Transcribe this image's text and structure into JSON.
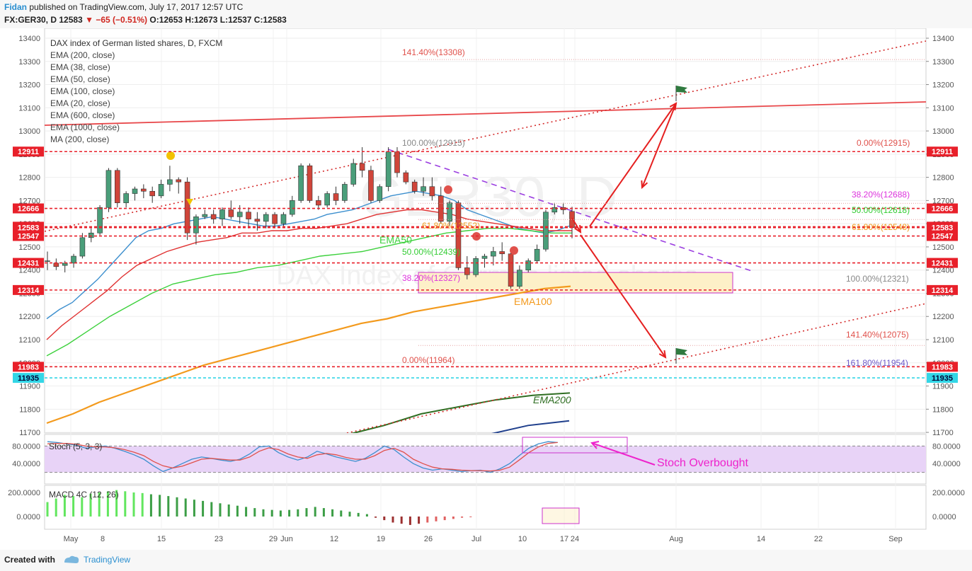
{
  "header": {
    "author": "Fidan",
    "published": "published on TradingView.com, July 17, 2017 12:57 UTC",
    "symbol": "FX:GER30, D",
    "last": "12583",
    "change": "−65 (−0.51%)",
    "ohlc": "O:12653 H:12673 L:12537 C:12583"
  },
  "legend": {
    "title": "DAX index of German listed shares, D, FXCM",
    "indicators": [
      "EMA (200, close)",
      "EMA (38, close)",
      "EMA (50, close)",
      "EMA (100, close)",
      "EMA (20, close)",
      "EMA (600, close)",
      "EMA (1000, close)",
      "MA (200, close)"
    ]
  },
  "watermark": {
    "symbol": "GER30, D",
    "name": "DAX Index of German listed shares"
  },
  "footer": {
    "created": "Created with",
    "brand": "TradingView"
  },
  "colors": {
    "up": "#4a9e7a",
    "down": "#d0453a",
    "ema20": "#3c8fce",
    "ema38": "#e03232",
    "ema50": "#3dd13d",
    "ema100": "#f39a1d",
    "ema200": "#2f6e22",
    "ema600": "#1f3f8c",
    "resistance": "#e8474a",
    "fib_violet": "#cc33cc"
  },
  "chart_data": [
    {
      "type": "candlestick",
      "title": "DAX index of German listed shares, D, FXCM",
      "ylim": [
        11650,
        13450
      ],
      "yticks": [
        13400,
        13300,
        13200,
        13100,
        13000,
        12900,
        12800,
        12700,
        12600,
        12500,
        12400,
        12300,
        12200,
        12100,
        12000,
        11900,
        11800,
        11700
      ],
      "xticks": [
        "May",
        "8",
        "15",
        "23",
        "29",
        "Jun",
        "12",
        "19",
        "26",
        "Jul",
        "10",
        "17",
        "24",
        "Aug",
        "14",
        "22",
        "Sep"
      ],
      "price_labels": [
        {
          "value": 12911,
          "color": "#e8202a"
        },
        {
          "value": 12666,
          "color": "#e8202a"
        },
        {
          "value": 12587,
          "color": "#e8202a"
        },
        {
          "value": 12583,
          "color": "#e8202a"
        },
        {
          "value": 12547,
          "color": "#e8202a"
        },
        {
          "value": 12431,
          "color": "#e8202a"
        },
        {
          "value": 12314,
          "color": "#e8202a"
        },
        {
          "value": 11983,
          "color": "#e8202a"
        },
        {
          "value": 11935,
          "color": "#33d6e6"
        }
      ],
      "candles": [
        [
          12440,
          12480,
          12400,
          12440
        ],
        [
          12430,
          12450,
          12400,
          12415
        ],
        [
          12420,
          12440,
          12390,
          12430
        ],
        [
          12430,
          12470,
          12410,
          12460
        ],
        [
          12460,
          12560,
          12450,
          12540
        ],
        [
          12540,
          12580,
          12520,
          12560
        ],
        [
          12560,
          12680,
          12550,
          12670
        ],
        [
          12670,
          12840,
          12650,
          12830
        ],
        [
          12830,
          12840,
          12670,
          12690
        ],
        [
          12690,
          12740,
          12670,
          12730
        ],
        [
          12730,
          12760,
          12700,
          12750
        ],
        [
          12750,
          12770,
          12710,
          12740
        ],
        [
          12740,
          12760,
          12690,
          12720
        ],
        [
          12720,
          12790,
          12710,
          12770
        ],
        [
          12770,
          12850,
          12740,
          12790
        ],
        [
          12790,
          12800,
          12730,
          12780
        ],
        [
          12780,
          12800,
          12530,
          12560
        ],
        [
          12560,
          12640,
          12510,
          12630
        ],
        [
          12630,
          12660,
          12620,
          12640
        ],
        [
          12640,
          12660,
          12600,
          12620
        ],
        [
          12620,
          12670,
          12590,
          12660
        ],
        [
          12660,
          12700,
          12620,
          12630
        ],
        [
          12630,
          12680,
          12600,
          12650
        ],
        [
          12650,
          12670,
          12580,
          12620
        ],
        [
          12620,
          12650,
          12570,
          12610
        ],
        [
          12610,
          12650,
          12580,
          12640
        ],
        [
          12640,
          12650,
          12580,
          12600
        ],
        [
          12600,
          12650,
          12590,
          12640
        ],
        [
          12640,
          12720,
          12630,
          12700
        ],
        [
          12700,
          12860,
          12690,
          12850
        ],
        [
          12850,
          12860,
          12690,
          12700
        ],
        [
          12700,
          12720,
          12660,
          12680
        ],
        [
          12680,
          12740,
          12670,
          12730
        ],
        [
          12730,
          12760,
          12680,
          12700
        ],
        [
          12700,
          12780,
          12690,
          12770
        ],
        [
          12770,
          12880,
          12760,
          12860
        ],
        [
          12860,
          12930,
          12800,
          12830
        ],
        [
          12830,
          12850,
          12690,
          12700
        ],
        [
          12700,
          12770,
          12690,
          12760
        ],
        [
          12760,
          12930,
          12740,
          12910
        ],
        [
          12910,
          12930,
          12800,
          12820
        ],
        [
          12820,
          12830,
          12770,
          12780
        ],
        [
          12780,
          12790,
          12730,
          12740
        ],
        [
          12740,
          12800,
          12720,
          12760
        ],
        [
          12760,
          12800,
          12700,
          12720
        ],
        [
          12720,
          12760,
          12600,
          12610
        ],
        [
          12610,
          12700,
          12590,
          12690
        ],
        [
          12690,
          12700,
          12400,
          12410
        ],
        [
          12410,
          12460,
          12360,
          12380
        ],
        [
          12380,
          12460,
          12370,
          12450
        ],
        [
          12450,
          12470,
          12410,
          12460
        ],
        [
          12460,
          12500,
          12420,
          12480
        ],
        [
          12480,
          12520,
          12440,
          12470
        ],
        [
          12470,
          12490,
          12320,
          12330
        ],
        [
          12330,
          12420,
          12320,
          12400
        ],
        [
          12400,
          12450,
          12390,
          12440
        ],
        [
          12440,
          12510,
          12430,
          12490
        ],
        [
          12490,
          12660,
          12480,
          12650
        ],
        [
          12650,
          12690,
          12640,
          12670
        ],
        [
          12670,
          12690,
          12640,
          12660
        ],
        [
          12653,
          12673,
          12537,
          12583
        ]
      ],
      "ema_series": [
        {
          "name": "EMA20",
          "values": [
            12190,
            12230,
            12260,
            12310,
            12360,
            12420,
            12480,
            12540,
            12570,
            12580,
            12600,
            12610,
            12620,
            12630,
            12620,
            12610,
            12600,
            12590,
            12590,
            12600,
            12610,
            12620,
            12640,
            12650,
            12660,
            12680,
            12700,
            12720,
            12730,
            12740,
            12730,
            12720,
            12700,
            12660,
            12640,
            12620,
            12600,
            12580,
            12570,
            12560,
            12570,
            12590
          ]
        },
        {
          "name": "EMA38",
          "values": [
            12100,
            12160,
            12210,
            12260,
            12310,
            12370,
            12420,
            12450,
            12480,
            12500,
            12520,
            12530,
            12540,
            12560,
            12560,
            12570,
            12570,
            12580,
            12580,
            12590,
            12600,
            12620,
            12640,
            12650,
            12660,
            12660,
            12650,
            12640,
            12620,
            12610,
            12600,
            12590,
            12580,
            12570,
            12570,
            12570
          ]
        },
        {
          "name": "EMA50",
          "values": [
            12030,
            12080,
            12140,
            12200,
            12250,
            12300,
            12340,
            12360,
            12380,
            12390,
            12410,
            12420,
            12440,
            12460,
            12470,
            12480,
            12500,
            12520,
            12540,
            12560,
            12570,
            12580,
            12580,
            12570,
            12560,
            12560
          ]
        },
        {
          "name": "EMA100",
          "values": [
            11740,
            11780,
            11830,
            11870,
            11910,
            11950,
            11990,
            12020,
            12050,
            12080,
            12110,
            12140,
            12170,
            12190,
            12220,
            12240,
            12260,
            12280,
            12300,
            12320,
            12330
          ]
        },
        {
          "name": "EMA200",
          "values": [
            11690,
            11730,
            11780,
            11810,
            11840,
            11860,
            11870
          ]
        },
        {
          "name": "EMA600",
          "values": [
            11650,
            11690,
            11730,
            11750
          ]
        }
      ],
      "annotations": [
        {
          "text": "141.40%(13308)",
          "value": 13308,
          "color": "#e0514b"
        },
        {
          "text": "100.00%(12915)",
          "value": 12915,
          "color": "#888888"
        },
        {
          "text": "0.00%(12915)",
          "value": 12915,
          "color": "#e0514b"
        },
        {
          "text": "38.20%(12688)",
          "value": 12688,
          "color": "#dd33dd"
        },
        {
          "text": "50.00%(12618)",
          "value": 12618,
          "color": "#33cc33"
        },
        {
          "text": "61.80%(12548)",
          "value": 12548,
          "color": "#f39a1d"
        },
        {
          "text": "61.80%(12552)",
          "value": 12552,
          "color": "#f39a1d"
        },
        {
          "text": "50.00%(12439)",
          "value": 12439,
          "color": "#33cc33"
        },
        {
          "text": "38.20%(12327)",
          "value": 12327,
          "color": "#dd33dd"
        },
        {
          "text": "100.00%(12321)",
          "value": 12321,
          "color": "#888888"
        },
        {
          "text": "141.40%(12075)",
          "value": 12075,
          "color": "#e0514b"
        },
        {
          "text": "0.00%(11964)",
          "value": 11964,
          "color": "#e0514b"
        },
        {
          "text": "161.80%(11954)",
          "value": 11954,
          "color": "#6b58c9"
        },
        {
          "text": "EMA50",
          "value": 12460,
          "color": "#3dd13d"
        },
        {
          "text": "EMA100",
          "value": 12235,
          "color": "#f39a1d"
        },
        {
          "text": "EMA200",
          "value": 11815,
          "color": "#2f6e22"
        }
      ]
    },
    {
      "type": "line",
      "title": "Stoch (5, 3, 3)",
      "ylim": [
        0,
        100
      ],
      "yticks": [
        80,
        40
      ],
      "levels": [
        80,
        20
      ],
      "series": [
        {
          "name": "%K",
          "color": "#3c8fce",
          "values": [
            90,
            88,
            85,
            82,
            75,
            78,
            80,
            75,
            68,
            60,
            50,
            35,
            22,
            30,
            40,
            50,
            55,
            52,
            48,
            45,
            50,
            62,
            78,
            80,
            65,
            55,
            48,
            55,
            68,
            62,
            55,
            50,
            45,
            52,
            65,
            80,
            72,
            55,
            40,
            30,
            25,
            28,
            25,
            22,
            24,
            25,
            20,
            28,
            40,
            58,
            75,
            85,
            90,
            88
          ]
        },
        {
          "name": "%D",
          "color": "#e0514b",
          "values": [
            85,
            86,
            86,
            84,
            80,
            78,
            78,
            76,
            72,
            66,
            58,
            45,
            35,
            30,
            34,
            42,
            50,
            52,
            50,
            48,
            48,
            55,
            68,
            76,
            72,
            62,
            55,
            52,
            60,
            63,
            60,
            54,
            50,
            50,
            58,
            70,
            75,
            66,
            50,
            40,
            32,
            28,
            27,
            25,
            24,
            24,
            23,
            25,
            32,
            48,
            65,
            78,
            86,
            88
          ]
        }
      ]
    },
    {
      "type": "bar",
      "title": "MACD 4C (12, 26)",
      "yticks": [
        200,
        0
      ],
      "values": [
        120,
        150,
        180,
        170,
        160,
        190,
        200,
        210,
        220,
        210,
        200,
        195,
        185,
        180,
        170,
        160,
        150,
        140,
        130,
        120,
        110,
        100,
        90,
        80,
        70,
        60,
        55,
        50,
        55,
        60,
        70,
        80,
        70,
        60,
        50,
        40,
        30,
        20,
        -10,
        -30,
        -50,
        -60,
        -70,
        -60,
        -50,
        -40,
        -30,
        -20,
        -10,
        -5
      ]
    }
  ],
  "labels": {
    "stoch_overbought": "Stoch Overbought"
  }
}
